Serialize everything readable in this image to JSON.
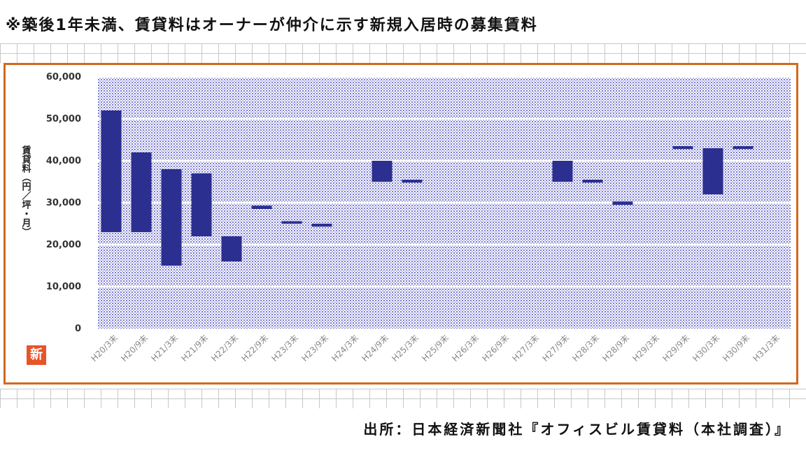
{
  "header": {
    "note": "※築後1年未満、賃貸料はオーナーが仲介に示す新規入居時の募集賃料"
  },
  "footer": {
    "source": "出所：日本経済新聞社『オフィスビル賃貸料（本社調査）』"
  },
  "logo": {
    "text": "新",
    "color": "#e8542a"
  },
  "colors": {
    "bar": "#2b2f8f",
    "frame": "#d2691e",
    "plot_pattern": "#7a7ad0"
  },
  "chart_data": {
    "type": "bar",
    "subtype": "floating-range",
    "ylabel": "賃貸料（円／坪・月）",
    "xlabel": "",
    "ylim": [
      0,
      60000
    ],
    "yticks": [
      0,
      10000,
      20000,
      30000,
      40000,
      50000,
      60000
    ],
    "ytick_labels": [
      "0",
      "10,000",
      "20,000",
      "30,000",
      "40,000",
      "50,000",
      "60,000"
    ],
    "grid": "horizontal",
    "categories": [
      "H20/3末",
      "H20/9末",
      "H21/3末",
      "H21/9末",
      "H22/3末",
      "H22/9末",
      "H23/3末",
      "H23/9末",
      "H24/3末",
      "H24/9末",
      "H25/3末",
      "H25/9末",
      "H26/3末",
      "H26/9末",
      "H27/3末",
      "H27/9末",
      "H28/3末",
      "H28/9末",
      "H29/3末",
      "H29/9末",
      "H30/3末",
      "H30/9末",
      "H31/3末"
    ],
    "series": [
      {
        "low": [
          23000,
          23000,
          15000,
          22000,
          16000,
          28500,
          25000,
          24300,
          null,
          35000,
          34800,
          null,
          null,
          null,
          null,
          35000,
          34800,
          29500,
          null,
          42800,
          32000,
          42800,
          null
        ],
        "high": [
          52000,
          42000,
          38000,
          37000,
          22000,
          29300,
          25600,
          25000,
          null,
          40000,
          35500,
          null,
          null,
          null,
          null,
          40000,
          35500,
          30300,
          null,
          43500,
          43000,
          43500,
          null
        ]
      }
    ]
  }
}
